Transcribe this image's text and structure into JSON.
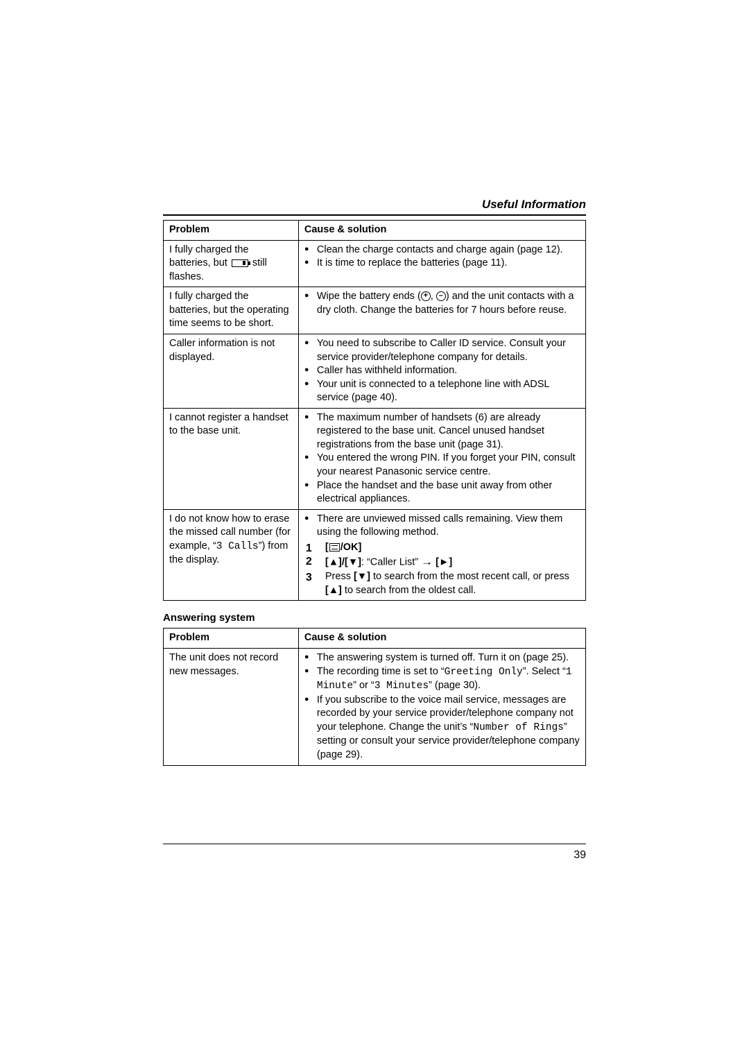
{
  "header": {
    "section": "Useful Information"
  },
  "table1": {
    "headers": {
      "problem": "Problem",
      "cause": "Cause & solution"
    },
    "rows": [
      {
        "problem_pre": "I fully charged the batteries, but ",
        "problem_post": " still flashes.",
        "causes": [
          "Clean the charge contacts and charge again (page 12).",
          "It is time to replace the batteries (page 11)."
        ]
      },
      {
        "problem": "I fully charged the batteries, but the operating time seems to be short.",
        "cause_pre": "Wipe the battery ends (",
        "cause_mid": ", ",
        "cause_post": ") and the unit contacts with a dry cloth. Change the batteries for 7 hours before reuse."
      },
      {
        "problem": "Caller information is not displayed.",
        "causes": [
          "You need to subscribe to Caller ID service. Consult your service provider/telephone company for details.",
          "Caller has withheld information.",
          "Your unit is connected to a telephone line with ADSL service (page 40)."
        ]
      },
      {
        "problem": "I cannot register a handset to the base unit.",
        "causes": [
          "The maximum number of handsets (6) are already registered to the base unit. Cancel unused handset registrations from the base unit (page 31).",
          "You entered the wrong PIN. If you forget your PIN, consult your nearest Panasonic service centre.",
          "Place the handset and the base unit away from other electrical appliances."
        ]
      },
      {
        "problem_pre": "I do not know how to erase the missed call number (for example, “",
        "problem_mono": "3 Calls",
        "problem_post": "”) from the display.",
        "cause_lead": "There are unviewed missed calls remaining. View them using the following method.",
        "step1_post": "/OK",
        "step2_keys": "[▲]/[▼]",
        "step2_label": ": “Caller List” ",
        "step2_arrow": " [►]",
        "step3a": "Press ",
        "step3a_key": "[▼]",
        "step3a_post": " to search from the most recent call, or press ",
        "step3b_key": "[▲]",
        "step3b_post": " to search from the oldest call."
      }
    ]
  },
  "subheading": "Answering system",
  "table2": {
    "headers": {
      "problem": "Problem",
      "cause": "Cause & solution"
    },
    "row": {
      "problem": "The unit does not record new messages.",
      "c1": "The answering system is turned off. Turn it on (page 25).",
      "c2a": "The recording time is set to “",
      "c2_mono1": "Greeting Only",
      "c2b": "”. Select “",
      "c2_mono2": "1 Minute",
      "c2c": "” or “",
      "c2_mono3": "3 Minutes",
      "c2d": "” (page 30).",
      "c3a": "If you subscribe to the voice mail service, messages are recorded by your service provider/telephone company not your telephone. Change the unit’s “",
      "c3_mono": "Number of Rings",
      "c3b": "” setting or consult your service provider/telephone company (page 29)."
    }
  },
  "pagenum": "39"
}
